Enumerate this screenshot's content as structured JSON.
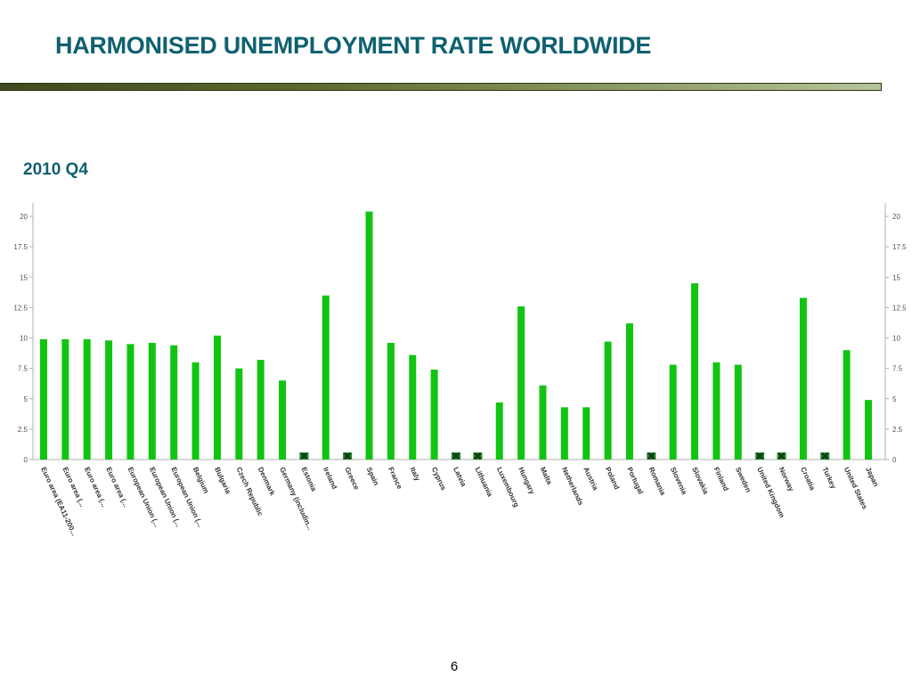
{
  "slide": {
    "title": "HARMONISED UNEMPLOYMENT RATE WORLDWIDE",
    "page_number": "6"
  },
  "colors": {
    "title": "#0f6170",
    "bar": "#11c411",
    "missing_marker": "#1e7d28"
  },
  "chart_data": {
    "type": "bar",
    "title": "2010 Q4",
    "xlabel": "",
    "ylabel": "",
    "ylim": [
      0,
      20
    ],
    "yticks": [
      "0",
      "2.5",
      "5",
      "7.5",
      "10",
      "12.5",
      "15",
      "17.5",
      "20"
    ],
    "grid": false,
    "legend": "none",
    "categories": [
      "Euro area (EA11-200...",
      "Euro area (...",
      "Euro area (...",
      "Euro area (...",
      "European Union (...",
      "European Union (...",
      "European Union (...",
      "Belgium",
      "Bulgaria",
      "Czech Republic",
      "Denmark",
      "Germany (includin...",
      "Estonia",
      "Ireland",
      "Greece",
      "Spain",
      "France",
      "Italy",
      "Cyprus",
      "Latvia",
      "Lithuania",
      "Luxembourg",
      "Hungary",
      "Malta",
      "Netherlands",
      "Austria",
      "Poland",
      "Portugal",
      "Romania",
      "Slovenia",
      "Slovakia",
      "Finland",
      "Sweden",
      "United Kingdom",
      "Norway",
      "Croatia",
      "Turkey",
      "United States",
      "Japan"
    ],
    "values": [
      9.9,
      9.9,
      9.9,
      9.8,
      9.5,
      9.6,
      9.4,
      8.0,
      10.2,
      7.5,
      8.2,
      6.5,
      null,
      13.5,
      null,
      20.4,
      9.6,
      8.6,
      7.4,
      null,
      null,
      4.7,
      12.6,
      6.1,
      4.3,
      4.3,
      9.7,
      11.2,
      null,
      7.8,
      14.5,
      8.0,
      7.8,
      null,
      null,
      13.3,
      null,
      9.0,
      4.9
    ]
  }
}
